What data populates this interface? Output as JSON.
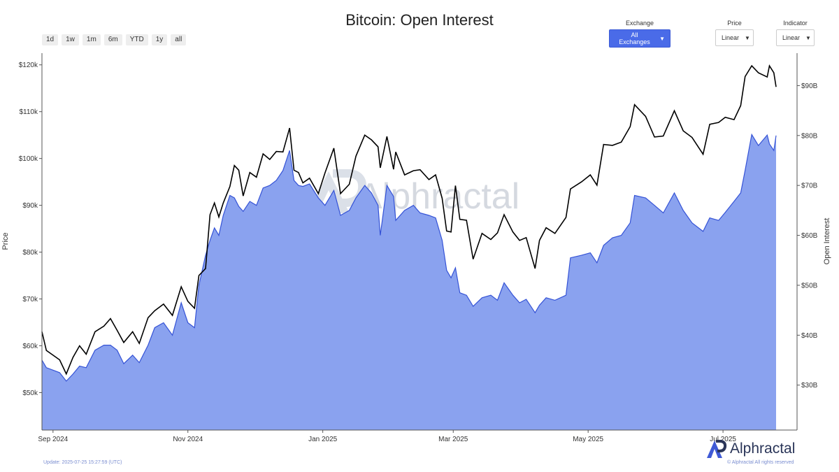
{
  "title": "Bitcoin: Open Interest",
  "range_buttons": [
    "1d",
    "1w",
    "1m",
    "6m",
    "YTD",
    "1y",
    "all"
  ],
  "controls": {
    "exchange": {
      "label": "Exchange",
      "value": "All Exchanges"
    },
    "price": {
      "label": "Price",
      "value": "Linear"
    },
    "indicator": {
      "label": "Indicator",
      "value": "Linear"
    }
  },
  "watermark": "Alphractal",
  "footer": {
    "update": "Update: 2025-07-25 15:27:59 (UTC)",
    "brand": "Alphractal",
    "copyright": "© Alphractal All rights reserved"
  },
  "colors": {
    "price_line": "#000000",
    "oi_fill": "#8aa2ef",
    "oi_line": "#3553d6",
    "accent": "#4a6be8"
  },
  "chart_data": {
    "type": "area",
    "x_start": "2024-08-27",
    "x_end": "2025-07-25",
    "x_ticks": [
      {
        "date": "2024-09-01",
        "label": "Sep 2024"
      },
      {
        "date": "2024-11-01",
        "label": "Nov 2024"
      },
      {
        "date": "2025-01-01",
        "label": "Jan 2025"
      },
      {
        "date": "2025-03-01",
        "label": "Mar 2025"
      },
      {
        "date": "2025-05-01",
        "label": "May 2025"
      },
      {
        "date": "2025-07-01",
        "label": "Jul 2025"
      }
    ],
    "y_left": {
      "label": "Price",
      "range": [
        42000,
        122500
      ],
      "ticks": [
        {
          "v": 50000,
          "label": "$50k"
        },
        {
          "v": 60000,
          "label": "$60k"
        },
        {
          "v": 70000,
          "label": "$70k"
        },
        {
          "v": 80000,
          "label": "$80k"
        },
        {
          "v": 90000,
          "label": "$90k"
        },
        {
          "v": 100000,
          "label": "$100k"
        },
        {
          "v": 110000,
          "label": "$110k"
        },
        {
          "v": 120000,
          "label": "$120k"
        }
      ]
    },
    "y_right": {
      "label": "Open Interest",
      "range": [
        21000000000,
        96500000000
      ],
      "ticks": [
        {
          "v": 30000000000,
          "label": "$30B"
        },
        {
          "v": 40000000000,
          "label": "$40B"
        },
        {
          "v": 50000000000,
          "label": "$50B"
        },
        {
          "v": 60000000000,
          "label": "$60B"
        },
        {
          "v": 70000000000,
          "label": "$70B"
        },
        {
          "v": 80000000000,
          "label": "$80B"
        },
        {
          "v": 90000000000,
          "label": "$90B"
        }
      ]
    },
    "grid": false,
    "series": [
      {
        "name": "Price",
        "axis": "left",
        "type": "line",
        "points": [
          [
            "2024-08-27",
            63000
          ],
          [
            "2024-08-29",
            59000
          ],
          [
            "2024-09-01",
            58000
          ],
          [
            "2024-09-04",
            57000
          ],
          [
            "2024-09-07",
            54000
          ],
          [
            "2024-09-10",
            57500
          ],
          [
            "2024-09-13",
            60000
          ],
          [
            "2024-09-16",
            58200
          ],
          [
            "2024-09-20",
            63000
          ],
          [
            "2024-09-24",
            64200
          ],
          [
            "2024-09-27",
            65800
          ],
          [
            "2024-09-30",
            63300
          ],
          [
            "2024-10-03",
            60700
          ],
          [
            "2024-10-07",
            63000
          ],
          [
            "2024-10-10",
            60500
          ],
          [
            "2024-10-14",
            66000
          ],
          [
            "2024-10-17",
            67500
          ],
          [
            "2024-10-21",
            68900
          ],
          [
            "2024-10-25",
            66500
          ],
          [
            "2024-10-29",
            72600
          ],
          [
            "2024-11-01",
            69500
          ],
          [
            "2024-11-04",
            68000
          ],
          [
            "2024-11-06",
            75000
          ],
          [
            "2024-11-09",
            76500
          ],
          [
            "2024-11-11",
            88000
          ],
          [
            "2024-11-13",
            90500
          ],
          [
            "2024-11-15",
            87500
          ],
          [
            "2024-11-17",
            90500
          ],
          [
            "2024-11-20",
            94000
          ],
          [
            "2024-11-22",
            98500
          ],
          [
            "2024-11-24",
            97500
          ],
          [
            "2024-11-26",
            92000
          ],
          [
            "2024-11-29",
            97000
          ],
          [
            "2024-12-02",
            96000
          ],
          [
            "2024-12-05",
            101000
          ],
          [
            "2024-12-08",
            99800
          ],
          [
            "2024-12-11",
            101500
          ],
          [
            "2024-12-14",
            101400
          ],
          [
            "2024-12-17",
            106500
          ],
          [
            "2024-12-19",
            97500
          ],
          [
            "2024-12-21",
            97000
          ],
          [
            "2024-12-23",
            94800
          ],
          [
            "2024-12-26",
            95800
          ],
          [
            "2024-12-30",
            92500
          ],
          [
            "2025-01-02",
            96900
          ],
          [
            "2025-01-06",
            102200
          ],
          [
            "2025-01-09",
            92500
          ],
          [
            "2025-01-13",
            94500
          ],
          [
            "2025-01-16",
            100500
          ],
          [
            "2025-01-20",
            105000
          ],
          [
            "2025-01-23",
            104000
          ],
          [
            "2025-01-26",
            102500
          ],
          [
            "2025-01-27",
            98000
          ],
          [
            "2025-01-30",
            104700
          ],
          [
            "2025-02-02",
            97700
          ],
          [
            "2025-02-03",
            101400
          ],
          [
            "2025-02-07",
            96500
          ],
          [
            "2025-02-11",
            97400
          ],
          [
            "2025-02-14",
            97600
          ],
          [
            "2025-02-18",
            95500
          ],
          [
            "2025-02-21",
            96500
          ],
          [
            "2025-02-24",
            91500
          ],
          [
            "2025-02-26",
            84500
          ],
          [
            "2025-02-28",
            84300
          ],
          [
            "2025-03-02",
            94200
          ],
          [
            "2025-03-04",
            87000
          ],
          [
            "2025-03-07",
            86800
          ],
          [
            "2025-03-10",
            78500
          ],
          [
            "2025-03-14",
            84000
          ],
          [
            "2025-03-18",
            82700
          ],
          [
            "2025-03-21",
            84100
          ],
          [
            "2025-03-24",
            88000
          ],
          [
            "2025-03-28",
            84300
          ],
          [
            "2025-03-31",
            82500
          ],
          [
            "2025-04-03",
            83100
          ],
          [
            "2025-04-07",
            76500
          ],
          [
            "2025-04-09",
            82500
          ],
          [
            "2025-04-12",
            85200
          ],
          [
            "2025-04-16",
            84000
          ],
          [
            "2025-04-21",
            87400
          ],
          [
            "2025-04-23",
            93500
          ],
          [
            "2025-04-28",
            95000
          ],
          [
            "2025-05-02",
            96500
          ],
          [
            "2025-05-05",
            94300
          ],
          [
            "2025-05-08",
            103000
          ],
          [
            "2025-05-12",
            102800
          ],
          [
            "2025-05-16",
            103500
          ],
          [
            "2025-05-20",
            106800
          ],
          [
            "2025-05-22",
            111500
          ],
          [
            "2025-05-27",
            109000
          ],
          [
            "2025-05-31",
            104600
          ],
          [
            "2025-06-04",
            104800
          ],
          [
            "2025-06-09",
            110200
          ],
          [
            "2025-06-13",
            105900
          ],
          [
            "2025-06-17",
            104500
          ],
          [
            "2025-06-22",
            100900
          ],
          [
            "2025-06-25",
            107300
          ],
          [
            "2025-06-29",
            107700
          ],
          [
            "2025-07-02",
            108800
          ],
          [
            "2025-07-06",
            108300
          ],
          [
            "2025-07-09",
            111300
          ],
          [
            "2025-07-11",
            117500
          ],
          [
            "2025-07-14",
            119800
          ],
          [
            "2025-07-17",
            118300
          ],
          [
            "2025-07-21",
            117400
          ],
          [
            "2025-07-22",
            119800
          ],
          [
            "2025-07-24",
            118300
          ],
          [
            "2025-07-25",
            115300
          ]
        ]
      },
      {
        "name": "Open Interest",
        "axis": "right",
        "type": "area",
        "points": [
          [
            "2024-08-27",
            35000000000
          ],
          [
            "2024-08-29",
            33500000000
          ],
          [
            "2024-09-01",
            33000000000
          ],
          [
            "2024-09-04",
            32500000000
          ],
          [
            "2024-09-07",
            30800000000
          ],
          [
            "2024-09-10",
            32200000000
          ],
          [
            "2024-09-13",
            33800000000
          ],
          [
            "2024-09-16",
            33500000000
          ],
          [
            "2024-09-20",
            37000000000
          ],
          [
            "2024-09-24",
            38000000000
          ],
          [
            "2024-09-27",
            38000000000
          ],
          [
            "2024-09-30",
            37000000000
          ],
          [
            "2024-10-03",
            34300000000
          ],
          [
            "2024-10-07",
            36000000000
          ],
          [
            "2024-10-10",
            34500000000
          ],
          [
            "2024-10-14",
            38000000000
          ],
          [
            "2024-10-17",
            41500000000
          ],
          [
            "2024-10-21",
            42500000000
          ],
          [
            "2024-10-25",
            40000000000
          ],
          [
            "2024-10-29",
            46500000000
          ],
          [
            "2024-11-01",
            42500000000
          ],
          [
            "2024-11-04",
            41500000000
          ],
          [
            "2024-11-06",
            50000000000
          ],
          [
            "2024-11-09",
            56000000000
          ],
          [
            "2024-11-11",
            59000000000
          ],
          [
            "2024-11-13",
            61500000000
          ],
          [
            "2024-11-15",
            60000000000
          ],
          [
            "2024-11-17",
            64000000000
          ],
          [
            "2024-11-20",
            68000000000
          ],
          [
            "2024-11-22",
            67500000000
          ],
          [
            "2024-11-24",
            65800000000
          ],
          [
            "2024-11-26",
            64800000000
          ],
          [
            "2024-11-29",
            66800000000
          ],
          [
            "2024-12-02",
            66000000000
          ],
          [
            "2024-12-05",
            69500000000
          ],
          [
            "2024-12-08",
            70000000000
          ],
          [
            "2024-12-11",
            71000000000
          ],
          [
            "2024-12-14",
            73000000000
          ],
          [
            "2024-12-17",
            77000000000
          ],
          [
            "2024-12-19",
            71000000000
          ],
          [
            "2024-12-21",
            70000000000
          ],
          [
            "2024-12-23",
            69800000000
          ],
          [
            "2024-12-26",
            70300000000
          ],
          [
            "2024-12-30",
            67500000000
          ],
          [
            "2025-01-02",
            66000000000
          ],
          [
            "2025-01-06",
            69000000000
          ],
          [
            "2025-01-09",
            64000000000
          ],
          [
            "2025-01-13",
            65000000000
          ],
          [
            "2025-01-16",
            67500000000
          ],
          [
            "2025-01-20",
            70000000000
          ],
          [
            "2025-01-23",
            68500000000
          ],
          [
            "2025-01-26",
            66000000000
          ],
          [
            "2025-01-27",
            60000000000
          ],
          [
            "2025-01-30",
            70000000000
          ],
          [
            "2025-02-02",
            67800000000
          ],
          [
            "2025-02-03",
            63000000000
          ],
          [
            "2025-02-07",
            65000000000
          ],
          [
            "2025-02-11",
            66000000000
          ],
          [
            "2025-02-14",
            64500000000
          ],
          [
            "2025-02-18",
            64000000000
          ],
          [
            "2025-02-21",
            63500000000
          ],
          [
            "2025-02-24",
            59000000000
          ],
          [
            "2025-02-26",
            53000000000
          ],
          [
            "2025-02-28",
            51500000000
          ],
          [
            "2025-03-02",
            53500000000
          ],
          [
            "2025-03-04",
            48500000000
          ],
          [
            "2025-03-07",
            48000000000
          ],
          [
            "2025-03-10",
            45800000000
          ],
          [
            "2025-03-14",
            47500000000
          ],
          [
            "2025-03-18",
            48000000000
          ],
          [
            "2025-03-21",
            47000000000
          ],
          [
            "2025-03-24",
            50500000000
          ],
          [
            "2025-03-28",
            48000000000
          ],
          [
            "2025-03-31",
            46500000000
          ],
          [
            "2025-04-03",
            47200000000
          ],
          [
            "2025-04-07",
            44500000000
          ],
          [
            "2025-04-09",
            46000000000
          ],
          [
            "2025-04-12",
            47500000000
          ],
          [
            "2025-04-16",
            47000000000
          ],
          [
            "2025-04-21",
            48000000000
          ],
          [
            "2025-04-23",
            55500000000
          ],
          [
            "2025-04-28",
            56000000000
          ],
          [
            "2025-05-02",
            56500000000
          ],
          [
            "2025-05-05",
            54500000000
          ],
          [
            "2025-05-08",
            58000000000
          ],
          [
            "2025-05-12",
            59500000000
          ],
          [
            "2025-05-16",
            60000000000
          ],
          [
            "2025-05-20",
            62500000000
          ],
          [
            "2025-05-22",
            68000000000
          ],
          [
            "2025-05-27",
            67500000000
          ],
          [
            "2025-05-31",
            66000000000
          ],
          [
            "2025-06-04",
            64500000000
          ],
          [
            "2025-06-09",
            68500000000
          ],
          [
            "2025-06-13",
            65000000000
          ],
          [
            "2025-06-17",
            62500000000
          ],
          [
            "2025-06-22",
            60800000000
          ],
          [
            "2025-06-25",
            63500000000
          ],
          [
            "2025-06-29",
            63000000000
          ],
          [
            "2025-07-02",
            64600000000
          ],
          [
            "2025-07-06",
            66800000000
          ],
          [
            "2025-07-09",
            68500000000
          ],
          [
            "2025-07-11",
            73000000000
          ],
          [
            "2025-07-14",
            80200000000
          ],
          [
            "2025-07-17",
            78000000000
          ],
          [
            "2025-07-21",
            80100000000
          ],
          [
            "2025-07-22",
            78300000000
          ],
          [
            "2025-07-24",
            77000000000
          ],
          [
            "2025-07-25",
            80000000000
          ]
        ]
      }
    ]
  }
}
